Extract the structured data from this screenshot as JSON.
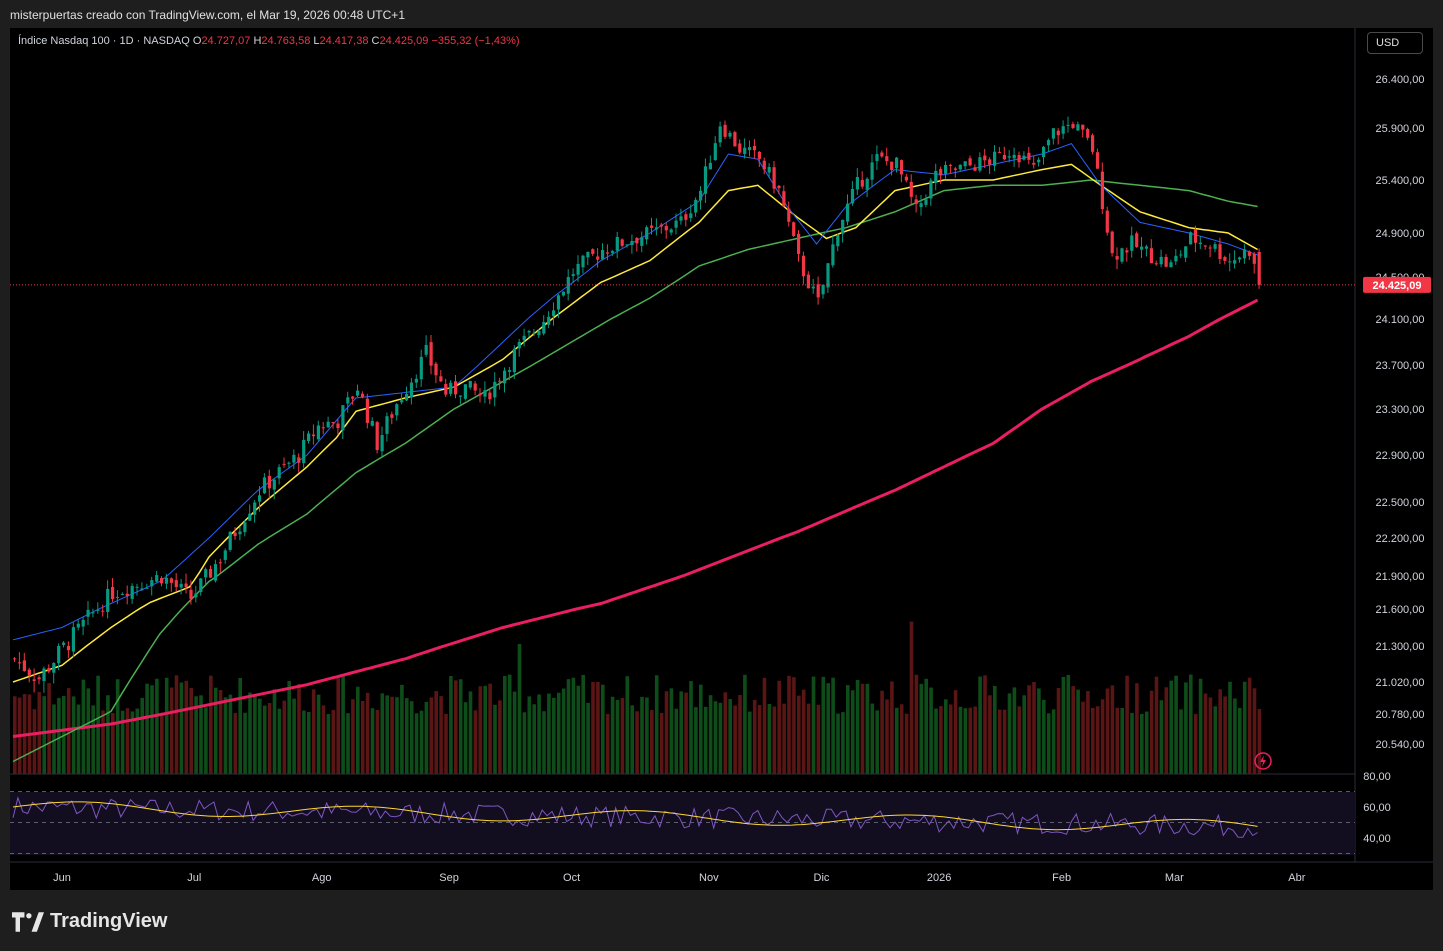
{
  "header": {
    "title": "misterpuertas creado con TradingView.com, el Mar 19, 2026 00:48 UTC+1"
  },
  "legend": {
    "symbol": "Índice Nasdaq 100 · 1D · NASDAQ",
    "o_label": "O",
    "o": "24.727,07",
    "h_label": "H",
    "h": "24.763,58",
    "l_label": "L",
    "l": "24.417,38",
    "c_label": "C",
    "c": "24.425,09",
    "change": "−355,32 (−1,43%)"
  },
  "currency_button": "USD",
  "brand": {
    "name": "TradingView"
  },
  "colors": {
    "up": "#089981",
    "down": "#f23645",
    "ema_fast": "#2962ff",
    "ema_mid": "#ffeb3b",
    "ema_slow": "#4caf50",
    "ma_long": "#e91e63",
    "rsi": "#7e57c2",
    "rsi_ma": "#fdd835"
  },
  "chart_data": {
    "type": "candlestick",
    "price_axis_labels": [
      "26.400,00",
      "25.900,00",
      "25.400,00",
      "24.900,00",
      "24.500,00",
      "24.100,00",
      "23.700,00",
      "23.300,00",
      "22.900,00",
      "22.500,00",
      "22.200,00",
      "21.900,00",
      "21.600,00",
      "21.300,00",
      "21.020,00",
      "20.780,00",
      "20.540,00"
    ],
    "price_axis_values": [
      26400,
      25900,
      25400,
      24900,
      24500,
      24100,
      23700,
      23300,
      22900,
      22500,
      22200,
      21900,
      21600,
      21300,
      21020,
      20780,
      20540
    ],
    "current_price_label": "24.425,09",
    "current_price": 24425.09,
    "rsi_axis_labels": [
      "80,00",
      "60,00",
      "40,00"
    ],
    "rsi_axis_values": [
      80,
      60,
      40
    ],
    "x_labels": [
      "Jun",
      "Jul",
      "Ago",
      "Sep",
      "Oct",
      "Nov",
      "Dic",
      "2026",
      "Feb",
      "Mar",
      "Abr"
    ],
    "x_label_bar_index": [
      10,
      37,
      63,
      89,
      114,
      142,
      165,
      189,
      214,
      237,
      262
    ],
    "bars_total": 255,
    "anchors": {
      "close": [
        [
          0,
          21200
        ],
        [
          5,
          21050
        ],
        [
          12,
          21380
        ],
        [
          20,
          21750
        ],
        [
          30,
          21900
        ],
        [
          36,
          21700
        ],
        [
          42,
          22050
        ],
        [
          50,
          22600
        ],
        [
          58,
          22900
        ],
        [
          62,
          23150
        ],
        [
          66,
          23200
        ],
        [
          70,
          23500
        ],
        [
          74,
          23000
        ],
        [
          78,
          23350
        ],
        [
          84,
          23800
        ],
        [
          88,
          23450
        ],
        [
          92,
          23500
        ],
        [
          96,
          23400
        ],
        [
          102,
          23800
        ],
        [
          108,
          24100
        ],
        [
          114,
          24550
        ],
        [
          120,
          24750
        ],
        [
          126,
          24850
        ],
        [
          130,
          24900
        ],
        [
          136,
          25000
        ],
        [
          140,
          25300
        ],
        [
          144,
          25950
        ],
        [
          148,
          25700
        ],
        [
          152,
          25600
        ],
        [
          156,
          25300
        ],
        [
          160,
          24650
        ],
        [
          164,
          24250
        ],
        [
          168,
          24950
        ],
        [
          172,
          25350
        ],
        [
          176,
          25600
        ],
        [
          180,
          25550
        ],
        [
          184,
          25100
        ],
        [
          188,
          25450
        ],
        [
          192,
          25500
        ],
        [
          196,
          25550
        ],
        [
          200,
          25600
        ],
        [
          204,
          25700
        ],
        [
          208,
          25500
        ],
        [
          212,
          25850
        ],
        [
          216,
          25950
        ],
        [
          220,
          25700
        ],
        [
          224,
          24700
        ],
        [
          228,
          24800
        ],
        [
          232,
          24700
        ],
        [
          236,
          24600
        ],
        [
          240,
          24850
        ],
        [
          244,
          24800
        ],
        [
          248,
          24650
        ],
        [
          252,
          24750
        ],
        [
          254,
          24425
        ]
      ],
      "ema_fast": [
        [
          0,
          21350
        ],
        [
          10,
          21450
        ],
        [
          20,
          21650
        ],
        [
          30,
          21850
        ],
        [
          40,
          22200
        ],
        [
          50,
          22600
        ],
        [
          60,
          22900
        ],
        [
          70,
          23400
        ],
        [
          80,
          23450
        ],
        [
          90,
          23500
        ],
        [
          100,
          23900
        ],
        [
          110,
          24300
        ],
        [
          120,
          24650
        ],
        [
          130,
          24900
        ],
        [
          140,
          25200
        ],
        [
          146,
          25650
        ],
        [
          152,
          25600
        ],
        [
          158,
          25150
        ],
        [
          164,
          24800
        ],
        [
          170,
          25150
        ],
        [
          180,
          25500
        ],
        [
          190,
          25450
        ],
        [
          200,
          25550
        ],
        [
          210,
          25650
        ],
        [
          216,
          25750
        ],
        [
          222,
          25350
        ],
        [
          230,
          25000
        ],
        [
          240,
          24900
        ],
        [
          248,
          24800
        ],
        [
          254,
          24700
        ]
      ],
      "ema_mid": [
        [
          0,
          21020
        ],
        [
          10,
          21150
        ],
        [
          20,
          21450
        ],
        [
          28,
          21660
        ],
        [
          36,
          21800
        ],
        [
          40,
          22050
        ],
        [
          50,
          22450
        ],
        [
          60,
          22800
        ],
        [
          66,
          23050
        ],
        [
          70,
          23280
        ],
        [
          80,
          23400
        ],
        [
          90,
          23500
        ],
        [
          100,
          23750
        ],
        [
          110,
          24100
        ],
        [
          120,
          24450
        ],
        [
          130,
          24650
        ],
        [
          140,
          25000
        ],
        [
          146,
          25300
        ],
        [
          152,
          25350
        ],
        [
          160,
          25050
        ],
        [
          166,
          24850
        ],
        [
          172,
          24950
        ],
        [
          180,
          25300
        ],
        [
          190,
          25400
        ],
        [
          200,
          25400
        ],
        [
          210,
          25500
        ],
        [
          216,
          25550
        ],
        [
          222,
          25350
        ],
        [
          230,
          25100
        ],
        [
          240,
          24950
        ],
        [
          248,
          24900
        ],
        [
          254,
          24750
        ]
      ],
      "ema_slow": [
        [
          0,
          20400
        ],
        [
          20,
          20800
        ],
        [
          30,
          21400
        ],
        [
          40,
          21850
        ],
        [
          50,
          22150
        ],
        [
          60,
          22400
        ],
        [
          70,
          22750
        ],
        [
          80,
          23000
        ],
        [
          90,
          23300
        ],
        [
          100,
          23550
        ],
        [
          110,
          23800
        ],
        [
          120,
          24050
        ],
        [
          130,
          24300
        ],
        [
          140,
          24600
        ],
        [
          150,
          24750
        ],
        [
          160,
          24850
        ],
        [
          170,
          24950
        ],
        [
          180,
          25100
        ],
        [
          190,
          25300
        ],
        [
          200,
          25350
        ],
        [
          210,
          25350
        ],
        [
          220,
          25400
        ],
        [
          230,
          25350
        ],
        [
          240,
          25300
        ],
        [
          248,
          25200
        ],
        [
          254,
          25150
        ]
      ],
      "ma_long": [
        [
          0,
          20600
        ],
        [
          20,
          20700
        ],
        [
          40,
          20850
        ],
        [
          60,
          21000
        ],
        [
          80,
          21200
        ],
        [
          100,
          21450
        ],
        [
          120,
          21650
        ],
        [
          140,
          21950
        ],
        [
          160,
          22250
        ],
        [
          180,
          22600
        ],
        [
          200,
          23000
        ],
        [
          210,
          23300
        ],
        [
          220,
          23550
        ],
        [
          230,
          23750
        ],
        [
          240,
          23950
        ],
        [
          254,
          24280
        ]
      ]
    }
  }
}
